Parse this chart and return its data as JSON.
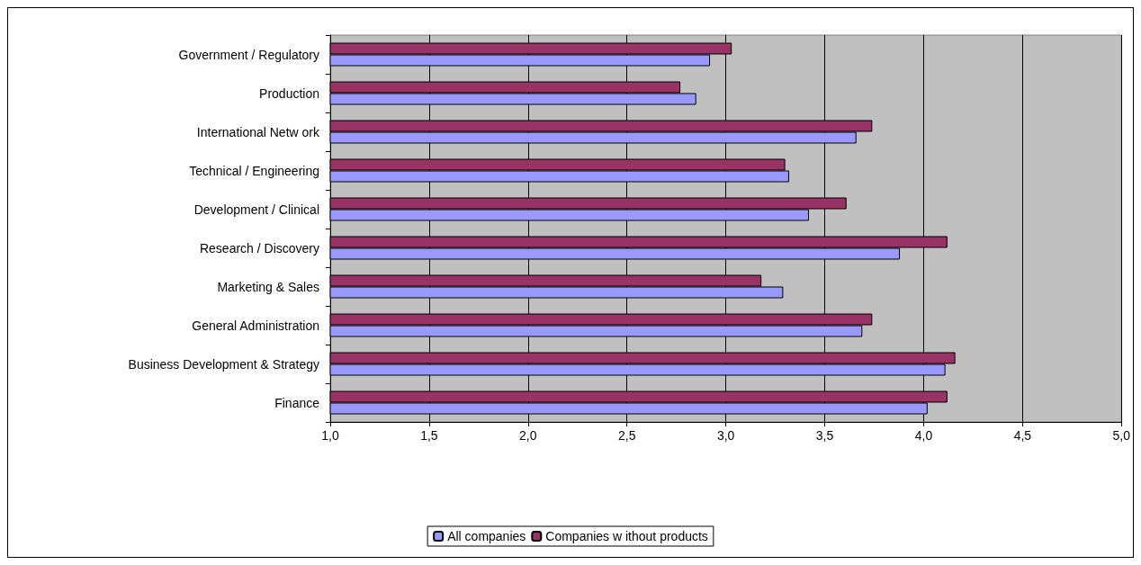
{
  "chart_data": {
    "type": "bar",
    "orientation": "horizontal",
    "categories": [
      "Government / Regulatory",
      "Production",
      "International Netw ork",
      "Technical / Engineering",
      "Development / Clinical",
      "Research / Discovery",
      "Marketing & Sales",
      "General Administration",
      "Business Development & Strategy",
      "Finance"
    ],
    "series": [
      {
        "name": "All companies",
        "color": "#9999ff",
        "values": [
          2.92,
          2.85,
          3.66,
          3.32,
          3.42,
          3.88,
          3.29,
          3.69,
          4.11,
          4.02
        ]
      },
      {
        "name": "Companies w ithout products",
        "color": "#993366",
        "values": [
          3.03,
          2.77,
          3.74,
          3.3,
          3.61,
          4.12,
          3.18,
          3.74,
          4.16,
          4.12
        ]
      }
    ],
    "xlim": [
      1,
      5
    ],
    "xticks": [
      {
        "value": 1,
        "label": "1,0"
      },
      {
        "value": 1.5,
        "label": "1,5"
      },
      {
        "value": 2,
        "label": "2,0"
      },
      {
        "value": 2.5,
        "label": "2,5"
      },
      {
        "value": 3,
        "label": "3,0"
      },
      {
        "value": 3.5,
        "label": "3,5"
      },
      {
        "value": 4,
        "label": "4,0"
      },
      {
        "value": 4.5,
        "label": "4,5"
      },
      {
        "value": 5,
        "label": "5,0"
      }
    ],
    "grid": "x",
    "legend": "bottom"
  }
}
